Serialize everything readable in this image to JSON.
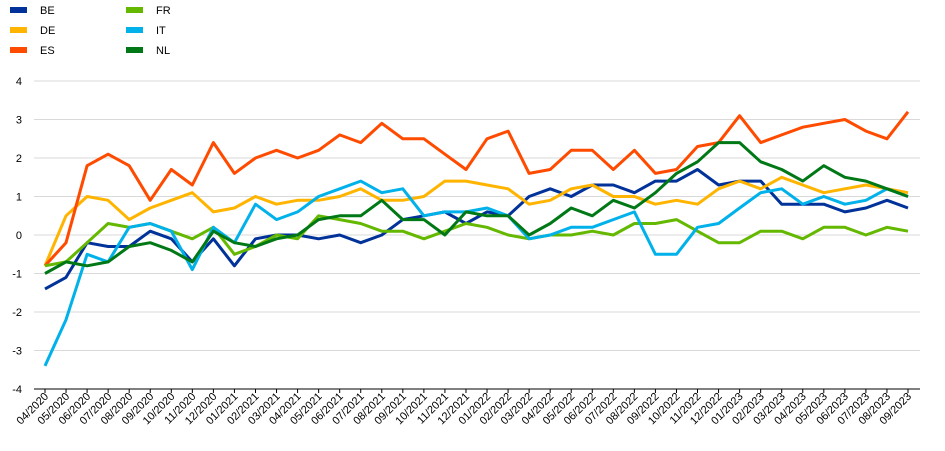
{
  "chart_data": {
    "type": "line",
    "categories": [
      "04/2020",
      "05/2020",
      "06/2020",
      "07/2020",
      "08/2020",
      "09/2020",
      "10/2020",
      "11/2020",
      "12/2020",
      "01/2021",
      "02/2021",
      "03/2021",
      "04/2021",
      "05/2021",
      "06/2021",
      "07/2021",
      "08/2021",
      "09/2021",
      "10/2021",
      "11/2021",
      "12/2021",
      "01/2022",
      "02/2022",
      "03/2022",
      "04/2022",
      "05/2022",
      "06/2022",
      "07/2022",
      "08/2022",
      "09/2022",
      "10/2022",
      "11/2022",
      "12/2022",
      "01/2023",
      "02/2023",
      "03/2023",
      "04/2023",
      "05/2023",
      "06/2023",
      "07/2023",
      "08/2023",
      "09/2023"
    ],
    "series": [
      {
        "name": "BE",
        "color": "#003299",
        "values": [
          -1.4,
          -1.1,
          -0.2,
          -0.3,
          -0.3,
          0.1,
          -0.1,
          -0.7,
          -0.1,
          -0.8,
          -0.1,
          0.0,
          0.0,
          -0.1,
          0.0,
          -0.2,
          0.0,
          0.4,
          0.5,
          0.6,
          0.3,
          0.6,
          0.5,
          1.0,
          1.2,
          1.0,
          1.3,
          1.3,
          1.1,
          1.4,
          1.4,
          1.7,
          1.3,
          1.4,
          1.4,
          0.8,
          0.8,
          0.8,
          0.6,
          0.7,
          0.9,
          0.7
        ]
      },
      {
        "name": "DE",
        "color": "#FFB400",
        "values": [
          -0.8,
          0.5,
          1.0,
          0.9,
          0.4,
          0.7,
          0.9,
          1.1,
          0.6,
          0.7,
          1.0,
          0.8,
          0.9,
          0.9,
          1.0,
          1.2,
          0.9,
          0.9,
          1.0,
          1.4,
          1.4,
          1.3,
          1.2,
          0.8,
          0.9,
          1.2,
          1.3,
          1.0,
          1.0,
          0.8,
          0.9,
          0.8,
          1.2,
          1.4,
          1.2,
          1.5,
          1.3,
          1.1,
          1.2,
          1.3,
          1.2,
          1.1
        ]
      },
      {
        "name": "ES",
        "color": "#FF4B00",
        "values": [
          -0.8,
          -0.2,
          1.8,
          2.1,
          1.8,
          0.9,
          1.7,
          1.3,
          2.4,
          1.6,
          2.0,
          2.2,
          2.0,
          2.2,
          2.6,
          2.4,
          2.9,
          2.5,
          2.5,
          2.1,
          1.7,
          2.5,
          2.7,
          1.6,
          1.7,
          2.2,
          2.2,
          1.7,
          2.2,
          1.6,
          1.7,
          2.3,
          2.4,
          3.1,
          2.4,
          2.6,
          2.8,
          2.9,
          3.0,
          2.7,
          2.5,
          3.2
        ]
      },
      {
        "name": "FR",
        "color": "#65B800",
        "values": [
          -0.8,
          -0.7,
          -0.2,
          0.3,
          0.2,
          0.3,
          0.1,
          -0.1,
          0.2,
          -0.5,
          -0.3,
          0.0,
          -0.1,
          0.5,
          0.4,
          0.3,
          0.1,
          0.1,
          -0.1,
          0.1,
          0.3,
          0.2,
          0.0,
          -0.1,
          0.0,
          0.0,
          0.1,
          0.0,
          0.3,
          0.3,
          0.4,
          0.1,
          -0.2,
          -0.2,
          0.1,
          0.1,
          -0.1,
          0.2,
          0.2,
          0.0,
          0.2,
          0.1
        ]
      },
      {
        "name": "IT",
        "color": "#00B1EA",
        "values": [
          -3.4,
          -2.2,
          -0.5,
          -0.7,
          0.2,
          0.3,
          0.1,
          -0.9,
          0.2,
          -0.2,
          0.8,
          0.4,
          0.6,
          1.0,
          1.2,
          1.4,
          1.1,
          1.2,
          0.5,
          0.6,
          0.6,
          0.7,
          0.5,
          -0.1,
          0.0,
          0.2,
          0.2,
          0.4,
          0.6,
          -0.5,
          -0.5,
          0.2,
          0.3,
          0.7,
          1.1,
          1.2,
          0.8,
          1.0,
          0.8,
          0.9,
          1.2,
          1.0
        ]
      },
      {
        "name": "NL",
        "color": "#007816",
        "values": [
          -1.0,
          -0.7,
          -0.8,
          -0.7,
          -0.3,
          -0.2,
          -0.4,
          -0.7,
          0.1,
          -0.2,
          -0.3,
          -0.1,
          0.0,
          0.4,
          0.5,
          0.5,
          0.9,
          0.4,
          0.4,
          0.0,
          0.6,
          0.5,
          0.5,
          0.0,
          0.3,
          0.7,
          0.5,
          0.9,
          0.7,
          1.1,
          1.6,
          1.9,
          2.4,
          2.4,
          1.9,
          1.7,
          1.4,
          1.8,
          1.5,
          1.4,
          1.2,
          1.0
        ]
      }
    ],
    "ylim": [
      -4,
      4
    ],
    "yticks": [
      -4,
      -3,
      -2,
      -1,
      0,
      1,
      2,
      3,
      4
    ],
    "grid": true
  }
}
